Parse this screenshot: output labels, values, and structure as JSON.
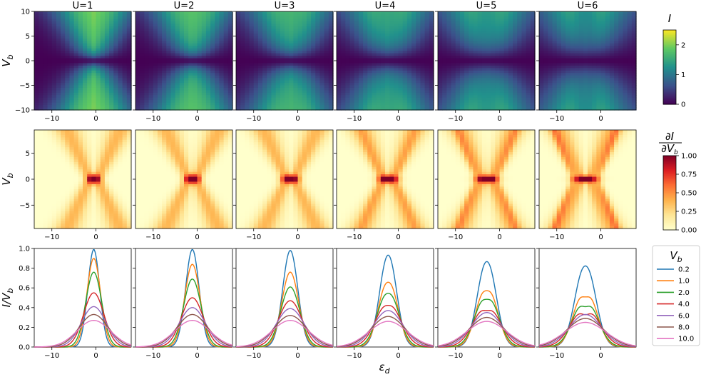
{
  "chart_data": [
    {
      "type": "heatmap",
      "panel_row": "current",
      "quantity": "I",
      "ylabel": "V_b",
      "columns": [
        "U=1",
        "U=2",
        "U=3",
        "U=4",
        "U=5",
        "U=6"
      ],
      "U_values": [
        1,
        2,
        3,
        4,
        5,
        6
      ],
      "x_range": [
        -14,
        8
      ],
      "y_range": [
        -10,
        10
      ],
      "xticks": [
        -10,
        0
      ],
      "yticks": [
        -10,
        -5,
        0,
        5,
        10
      ],
      "colorbar": {
        "label": "I",
        "range": [
          0,
          2.5
        ],
        "ticks": [
          0,
          1,
          2
        ],
        "colormap": "viridis"
      }
    },
    {
      "type": "heatmap",
      "panel_row": "differential conductance",
      "quantity": "dI/dV_b",
      "ylabel": "V_b",
      "columns": [
        "U=1",
        "U=2",
        "U=3",
        "U=4",
        "U=5",
        "U=6"
      ],
      "x_range": [
        -14,
        8
      ],
      "y_range": [
        -9.5,
        9.5
      ],
      "xticks": [
        -10,
        0
      ],
      "yticks": [
        -5,
        0,
        5
      ],
      "colorbar": {
        "label": "∂I/∂V_b",
        "range": [
          0,
          1
        ],
        "ticks": [
          0.0,
          0.25,
          0.5,
          0.75,
          1.0
        ],
        "colormap": "YlOrRd"
      }
    },
    {
      "type": "line",
      "panel_row": "normalized current",
      "ylabel": "I/V_b",
      "xlabel": "ε_d",
      "x_range": [
        -14,
        8
      ],
      "ylim": [
        0,
        1.0
      ],
      "xticks": [
        -10,
        0
      ],
      "yticks": [
        0.0,
        0.2,
        0.4,
        0.6,
        0.8,
        1.0
      ],
      "legend": {
        "title": "V_b",
        "position": "right"
      },
      "series": [
        {
          "name": "0.2",
          "color": "#1f77b4",
          "peak_by_U": [
            0.99,
            0.99,
            0.98,
            0.95,
            0.9,
            0.87
          ]
        },
        {
          "name": "1.0",
          "color": "#ff7f0e",
          "peak_by_U": [
            0.9,
            0.84,
            0.76,
            0.7,
            0.65,
            0.62
          ]
        },
        {
          "name": "2.0",
          "color": "#2ca02c",
          "peak_by_U": [
            0.76,
            0.69,
            0.61,
            0.58,
            0.55,
            0.5
          ]
        },
        {
          "name": "4.0",
          "color": "#d62728",
          "peak_by_U": [
            0.55,
            0.5,
            0.47,
            0.45,
            0.42,
            0.4
          ]
        },
        {
          "name": "6.0",
          "color": "#9467bd",
          "peak_by_U": [
            0.41,
            0.4,
            0.39,
            0.37,
            0.35,
            0.33
          ]
        },
        {
          "name": "8.0",
          "color": "#8c564b",
          "peak_by_U": [
            0.33,
            0.33,
            0.32,
            0.31,
            0.3,
            0.29
          ]
        },
        {
          "name": "10.0",
          "color": "#e377c2",
          "peak_by_U": [
            0.27,
            0.27,
            0.27,
            0.26,
            0.26,
            0.25
          ]
        }
      ]
    }
  ]
}
